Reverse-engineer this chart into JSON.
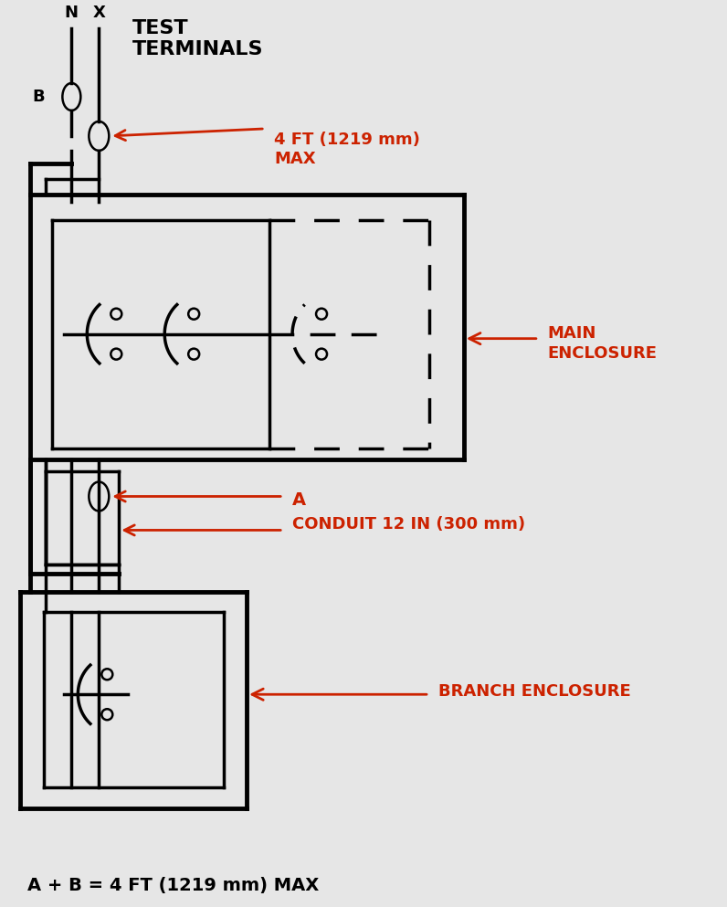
{
  "bg_color": "#e6e6e6",
  "line_color": "black",
  "arrow_color": "#cc2200",
  "text_color": "black",
  "red_color": "#cc2200",
  "label_test_terminals": "TEST\nTERMINALS",
  "label_N": "N",
  "label_X": "X",
  "label_B": "B",
  "label_4ft": "4 FT (1219 mm)\nMAX",
  "label_A": "A",
  "label_conduit": "CONDUIT 12 IN (300 mm)",
  "label_main": "MAIN\nENCLOSURE",
  "label_branch": "BRANCH ENCLOSURE",
  "label_bottom": "A + B = 4 FT (1219 mm) MAX"
}
